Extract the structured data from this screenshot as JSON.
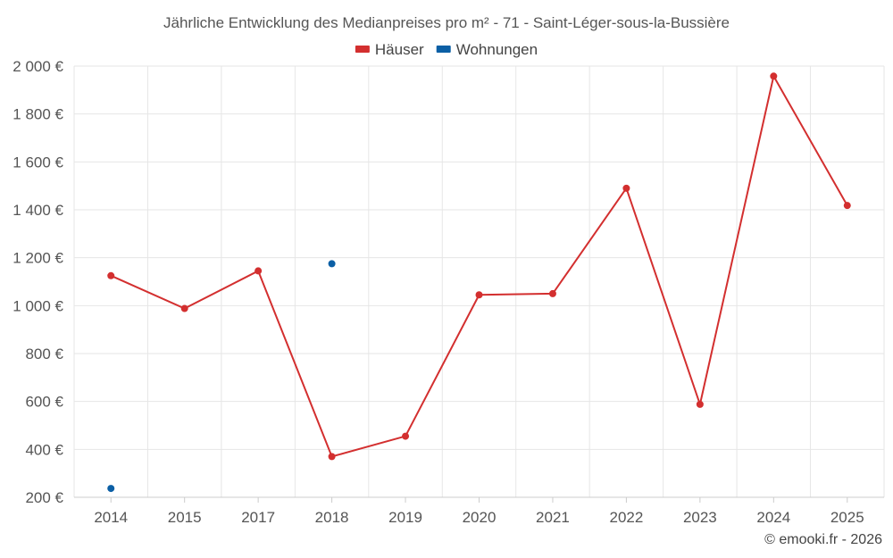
{
  "chart_data": {
    "type": "line",
    "title": "Jährliche Entwicklung des Medianpreises pro m² - 71 - Saint-Léger-sous-la-Bussière",
    "categories": [
      "2014",
      "2015",
      "2017",
      "2018",
      "2019",
      "2020",
      "2021",
      "2022",
      "2023",
      "2024",
      "2025"
    ],
    "y_ticks": [
      200,
      400,
      600,
      800,
      1000,
      1200,
      1400,
      1600,
      1800,
      2000
    ],
    "y_tick_labels": [
      "200 €",
      "400 €",
      "600 €",
      "800 €",
      "1 000 €",
      "1 200 €",
      "1 400 €",
      "1 600 €",
      "1 800 €",
      "2 000 €"
    ],
    "ylim": [
      200,
      2000
    ],
    "xlabel": "",
    "ylabel": "",
    "legend_position": "top-center",
    "grid": true,
    "series": [
      {
        "name": "Häuser",
        "color": "#d32f2f",
        "line": true,
        "values": [
          1125,
          988,
          1145,
          370,
          455,
          1045,
          1050,
          1490,
          588,
          1958,
          1418
        ]
      },
      {
        "name": "Wohnungen",
        "color": "#0b5fa5",
        "line": false,
        "values": [
          237,
          null,
          null,
          1175,
          null,
          null,
          null,
          null,
          null,
          null,
          null
        ]
      }
    ],
    "credit": "© emooki.fr - 2026"
  }
}
